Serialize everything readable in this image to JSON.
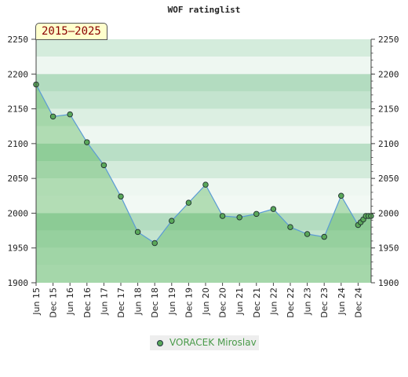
{
  "chart_data": {
    "type": "area",
    "title": "WOF ratinglist",
    "period_label": "2015–2025",
    "xlabel": "",
    "ylabel": "",
    "ylim": [
      1900,
      2250
    ],
    "yticks": [
      1900,
      1950,
      2000,
      2050,
      2100,
      2150,
      2200,
      2250
    ],
    "x_tick_labels": [
      "Jun 15",
      "Dec 15",
      "Jun 16",
      "Dec 16",
      "Jun 17",
      "Dec 17",
      "Jun 18",
      "Dec 18",
      "Jun 19",
      "Dec 19",
      "Jun 20",
      "Dec 20",
      "Jun 21",
      "Dec 21",
      "Jun 22",
      "Dec 22",
      "Jun 23",
      "Dec 23",
      "Jun 24",
      "Dec 24"
    ],
    "series": [
      {
        "name": "VORACEK Miroslav",
        "points": [
          {
            "x": "Jun 15",
            "y": 2185
          },
          {
            "x": "Dec 15",
            "y": 2139
          },
          {
            "x": "Jun 16",
            "y": 2142
          },
          {
            "x": "Dec 16",
            "y": 2102
          },
          {
            "x": "Jun 17",
            "y": 2069
          },
          {
            "x": "Dec 17",
            "y": 2024
          },
          {
            "x": "Jun 18",
            "y": 1973
          },
          {
            "x": "Dec 18",
            "y": 1957
          },
          {
            "x": "Jun 19",
            "y": 1989
          },
          {
            "x": "Dec 19",
            "y": 2015
          },
          {
            "x": "Jun 20",
            "y": 2041
          },
          {
            "x": "Dec 20",
            "y": 1996
          },
          {
            "x": "Jun 21",
            "y": 1994
          },
          {
            "x": "Dec 21",
            "y": 1999
          },
          {
            "x": "Jun 22",
            "y": 2006
          },
          {
            "x": "Dec 22",
            "y": 1980
          },
          {
            "x": "Jun 23",
            "y": 1970
          },
          {
            "x": "Dec 23",
            "y": 1966
          },
          {
            "x": "Jun 24",
            "y": 2025
          },
          {
            "x": "Dec 24",
            "y": 1983
          },
          {
            "x": "Dec 24",
            "y": 1987
          },
          {
            "x": "Dec 24",
            "y": 1991
          },
          {
            "x": "Dec 24",
            "y": 1996
          },
          {
            "x": "Dec 24",
            "y": 1996
          },
          {
            "x": "Dec 24",
            "y": 1996
          }
        ]
      }
    ],
    "grid": true,
    "legend_position": "bottom-center",
    "colors": {
      "line": "#5b9bd5",
      "marker_fill": "#5aa85a",
      "area_fill": "#7cc47c",
      "band_dark": "#b3dcc0",
      "band_light": "#f2f9f4",
      "legend_text": "#4a9b4a",
      "badge_bg": "#ffffcc",
      "badge_text": "#8b0000"
    }
  }
}
